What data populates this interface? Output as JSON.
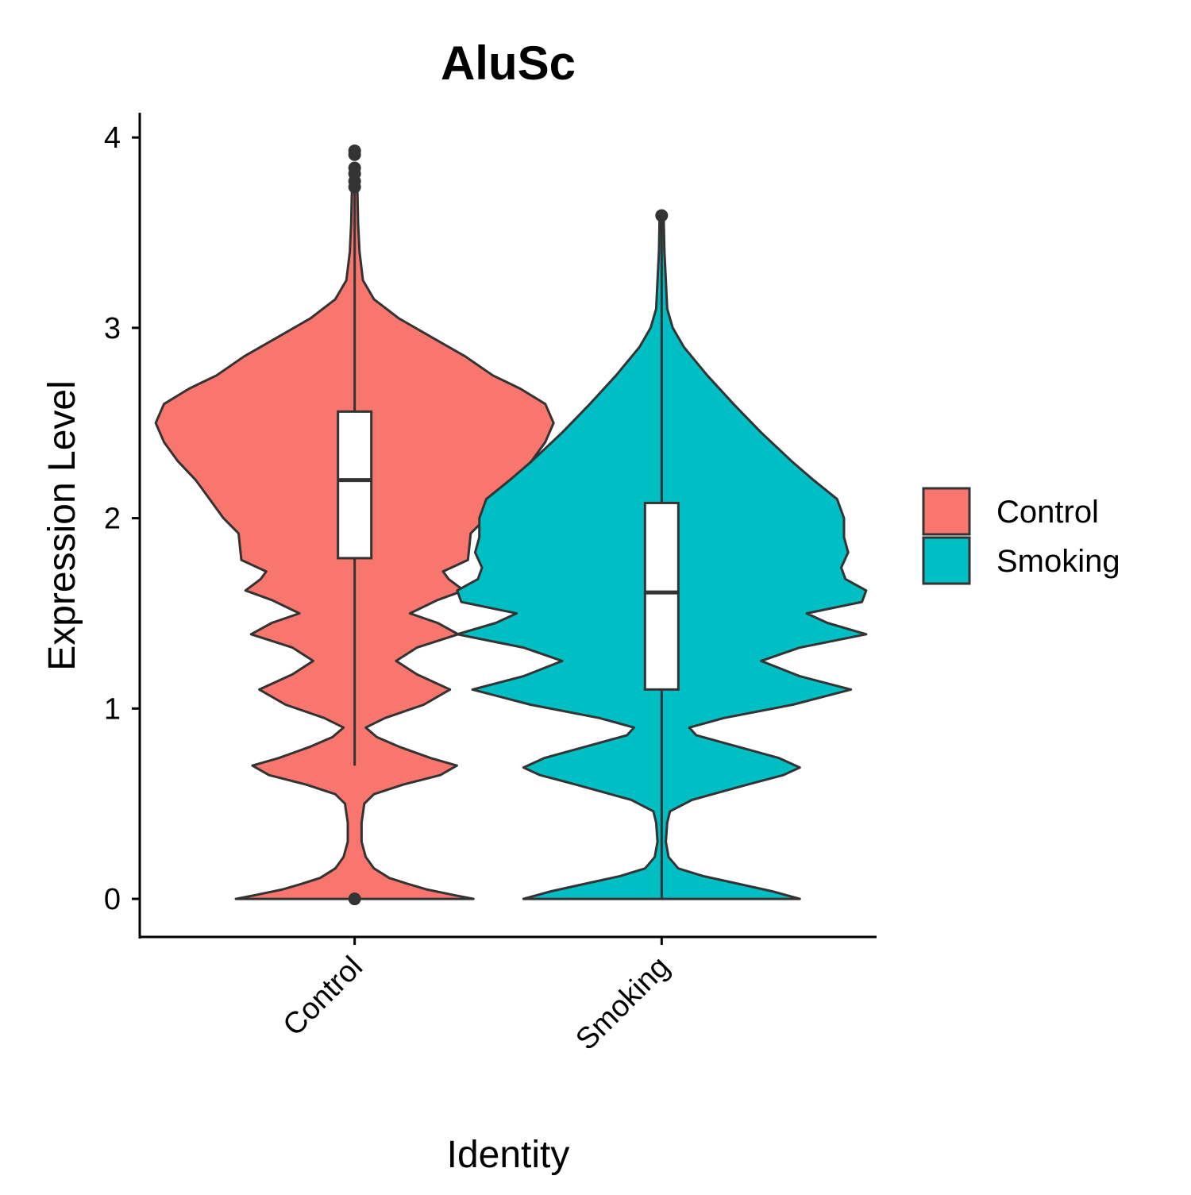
{
  "chart_data": {
    "type": "violin",
    "title": "AluSc",
    "xlabel": "Identity",
    "ylabel": "Expression Level",
    "ylim": [
      -0.2,
      4.13
    ],
    "yticks": [
      0,
      1,
      2,
      3,
      4
    ],
    "categories": [
      "Control",
      "Smoking"
    ],
    "legend": {
      "position": "right",
      "entries": [
        {
          "label": "Control",
          "color": "#F8766D"
        },
        {
          "label": "Smoking",
          "color": "#00BFC4"
        }
      ]
    },
    "series": [
      {
        "name": "Control",
        "color": "#F8766D",
        "box": {
          "q1": 1.79,
          "median": 2.2,
          "q3": 2.56,
          "whisker_low": 0.7,
          "whisker_high": 3.72
        },
        "outliers": [
          0.0,
          3.74,
          3.77,
          3.81,
          3.84,
          3.91,
          3.93
        ],
        "violin_range": [
          0.0,
          3.72
        ],
        "density": [
          [
            0.0,
            0.86
          ],
          [
            0.02,
            0.72
          ],
          [
            0.05,
            0.52
          ],
          [
            0.08,
            0.38
          ],
          [
            0.11,
            0.25
          ],
          [
            0.16,
            0.14
          ],
          [
            0.22,
            0.08
          ],
          [
            0.3,
            0.05
          ],
          [
            0.4,
            0.05
          ],
          [
            0.5,
            0.07
          ],
          [
            0.55,
            0.14
          ],
          [
            0.6,
            0.35
          ],
          [
            0.65,
            0.62
          ],
          [
            0.7,
            0.74
          ],
          [
            0.74,
            0.55
          ],
          [
            0.8,
            0.32
          ],
          [
            0.85,
            0.16
          ],
          [
            0.9,
            0.08
          ],
          [
            0.95,
            0.22
          ],
          [
            1.02,
            0.5
          ],
          [
            1.1,
            0.69
          ],
          [
            1.18,
            0.45
          ],
          [
            1.25,
            0.3
          ],
          [
            1.32,
            0.45
          ],
          [
            1.39,
            0.75
          ],
          [
            1.45,
            0.6
          ],
          [
            1.5,
            0.4
          ],
          [
            1.57,
            0.6
          ],
          [
            1.62,
            0.79
          ],
          [
            1.68,
            0.68
          ],
          [
            1.72,
            0.64
          ],
          [
            1.78,
            0.82
          ],
          [
            1.85,
            0.83
          ],
          [
            1.92,
            0.84
          ],
          [
            2.0,
            0.95
          ],
          [
            2.1,
            1.05
          ],
          [
            2.2,
            1.15
          ],
          [
            2.3,
            1.28
          ],
          [
            2.4,
            1.38
          ],
          [
            2.5,
            1.44
          ],
          [
            2.6,
            1.38
          ],
          [
            2.68,
            1.2
          ],
          [
            2.75,
            1.0
          ],
          [
            2.85,
            0.8
          ],
          [
            2.95,
            0.56
          ],
          [
            3.05,
            0.32
          ],
          [
            3.15,
            0.14
          ],
          [
            3.25,
            0.06
          ],
          [
            3.4,
            0.035
          ],
          [
            3.55,
            0.025
          ],
          [
            3.72,
            0.02
          ]
        ]
      },
      {
        "name": "Smoking",
        "color": "#00BFC4",
        "box": {
          "q1": 1.1,
          "median": 1.61,
          "q3": 2.08,
          "whisker_low": 0.0,
          "whisker_high": 3.57
        },
        "outliers": [
          3.59
        ],
        "violin_range": [
          0.0,
          3.57
        ],
        "density": [
          [
            0.0,
            1.0
          ],
          [
            0.04,
            0.8
          ],
          [
            0.08,
            0.55
          ],
          [
            0.12,
            0.3
          ],
          [
            0.16,
            0.12
          ],
          [
            0.22,
            0.05
          ],
          [
            0.3,
            0.03
          ],
          [
            0.4,
            0.04
          ],
          [
            0.46,
            0.06
          ],
          [
            0.52,
            0.22
          ],
          [
            0.6,
            0.62
          ],
          [
            0.65,
            0.88
          ],
          [
            0.69,
            1.0
          ],
          [
            0.74,
            0.85
          ],
          [
            0.8,
            0.55
          ],
          [
            0.86,
            0.25
          ],
          [
            0.9,
            0.2
          ],
          [
            0.95,
            0.45
          ],
          [
            1.02,
            0.95
          ],
          [
            1.1,
            1.37
          ],
          [
            1.17,
            1.0
          ],
          [
            1.25,
            0.72
          ],
          [
            1.32,
            1.0
          ],
          [
            1.39,
            1.48
          ],
          [
            1.45,
            1.2
          ],
          [
            1.5,
            1.05
          ],
          [
            1.56,
            1.45
          ],
          [
            1.62,
            1.48
          ],
          [
            1.68,
            1.33
          ],
          [
            1.74,
            1.3
          ],
          [
            1.82,
            1.35
          ],
          [
            1.9,
            1.32
          ],
          [
            2.0,
            1.32
          ],
          [
            2.1,
            1.27
          ],
          [
            2.2,
            1.1
          ],
          [
            2.3,
            0.94
          ],
          [
            2.45,
            0.72
          ],
          [
            2.6,
            0.52
          ],
          [
            2.75,
            0.33
          ],
          [
            2.9,
            0.16
          ],
          [
            3.0,
            0.08
          ],
          [
            3.1,
            0.04
          ],
          [
            3.25,
            0.03
          ],
          [
            3.4,
            0.02
          ],
          [
            3.57,
            0.015
          ]
        ]
      }
    ]
  }
}
